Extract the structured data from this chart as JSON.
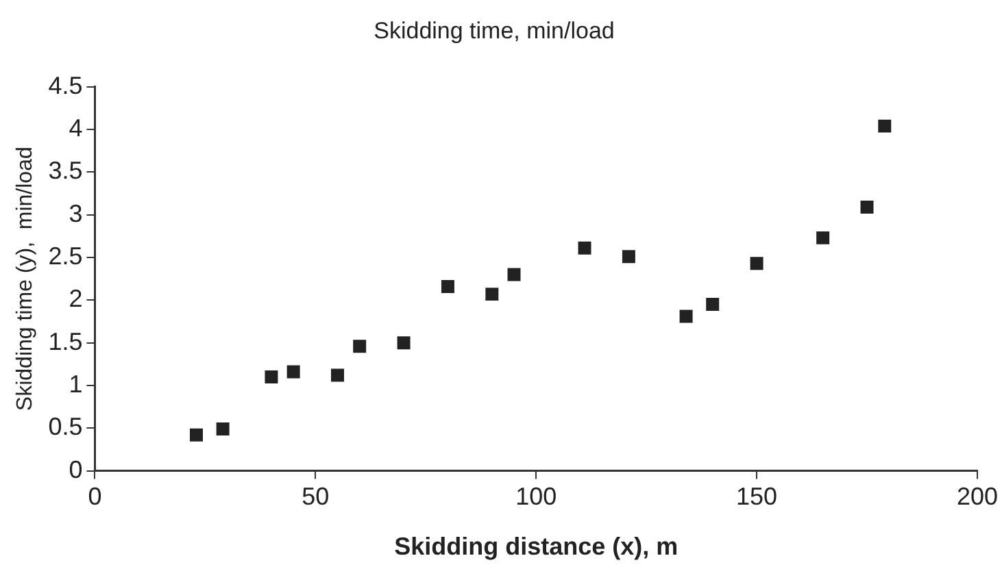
{
  "chart_data": {
    "type": "scatter",
    "title": "Skidding time, min/load",
    "xlabel": "Skidding distance (x), m",
    "ylabel": "Skidding time (y),  min/load",
    "x": [
      23,
      29,
      40,
      45,
      55,
      60,
      70,
      80,
      90,
      95,
      111,
      121,
      134,
      140,
      150,
      165,
      175,
      179
    ],
    "values": [
      0.42,
      0.49,
      1.1,
      1.16,
      1.12,
      1.46,
      1.5,
      2.16,
      2.07,
      2.3,
      2.61,
      2.51,
      1.81,
      1.95,
      2.43,
      2.73,
      3.09,
      4.04
    ],
    "color": "#222222",
    "marker": "square",
    "xlim": [
      0,
      200
    ],
    "xticks": [
      0,
      50,
      100,
      150,
      200
    ],
    "ylim": [
      0,
      4.5
    ],
    "yticks": [
      0,
      0.5,
      1,
      1.5,
      2,
      2.5,
      3,
      3.5,
      4,
      4.5
    ],
    "grid": false,
    "legend": false
  }
}
